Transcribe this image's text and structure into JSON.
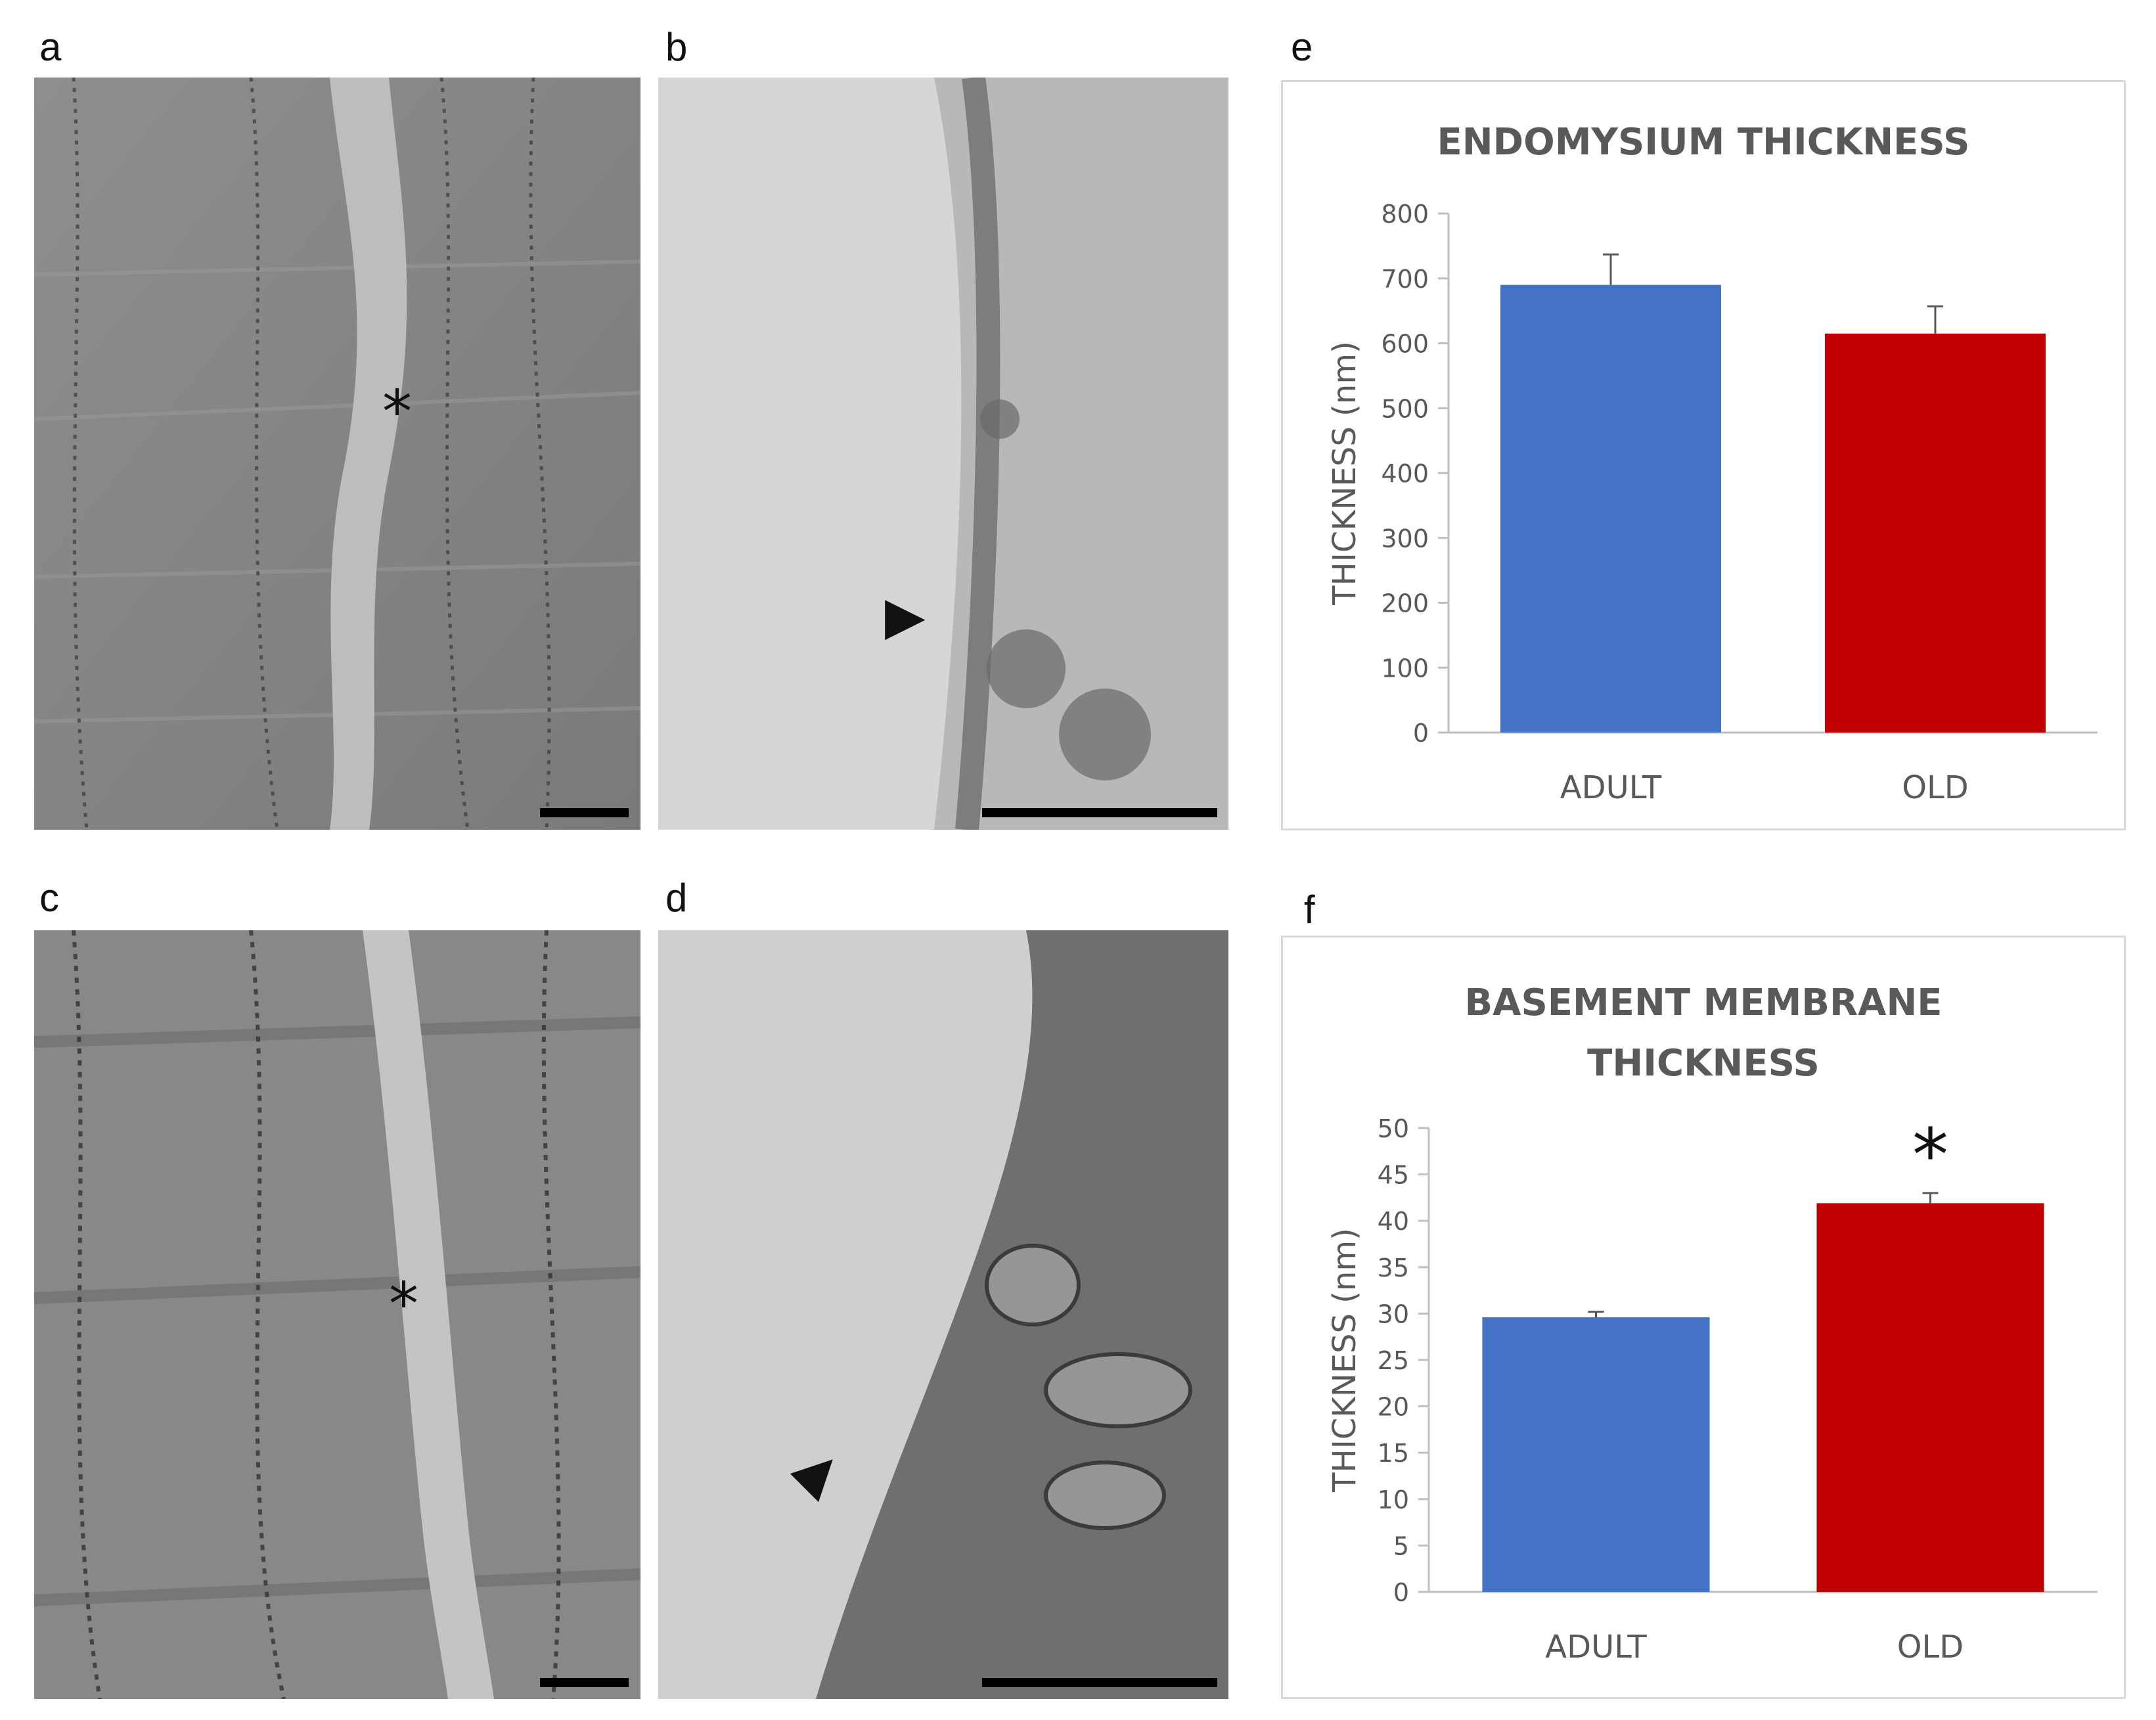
{
  "panels": {
    "a": "a",
    "b": "b",
    "c": "c",
    "d": "d",
    "e": "e",
    "f": "f"
  },
  "micrographs": {
    "a": {
      "marker": "*"
    },
    "b": {
      "marker": "▲"
    },
    "c": {
      "marker": "*"
    },
    "d": {
      "marker": "▲"
    }
  },
  "colors": {
    "adult": "#4472c4",
    "old": "#c00000",
    "axis": "#bfbfbf",
    "text": "#595959"
  },
  "chart_data": [
    {
      "type": "bar",
      "title": "ENDOMYSIUM THICKNESS",
      "ylabel": "THICKNESS (nm)",
      "xlabel": "",
      "categories": [
        "ADULT",
        "OLD"
      ],
      "values": [
        690,
        615
      ],
      "errors": [
        47,
        42
      ],
      "ylim": [
        0,
        800
      ],
      "yticks": [
        0,
        100,
        200,
        300,
        400,
        500,
        600,
        700,
        800
      ],
      "significance": [
        "",
        ""
      ]
    },
    {
      "type": "bar",
      "title": "BASEMENT MEMBRANE THICKNESS",
      "title_lines": [
        "BASEMENT MEMBRANE",
        "THICKNESS"
      ],
      "ylabel": "THICKNESS (nm)",
      "xlabel": "",
      "categories": [
        "ADULT",
        "OLD"
      ],
      "values": [
        29.6,
        41.9
      ],
      "errors": [
        0.6,
        1.1
      ],
      "ylim": [
        0,
        50
      ],
      "yticks": [
        0,
        5,
        10,
        15,
        20,
        25,
        30,
        35,
        40,
        45,
        50
      ],
      "significance": [
        "",
        "*"
      ]
    }
  ]
}
